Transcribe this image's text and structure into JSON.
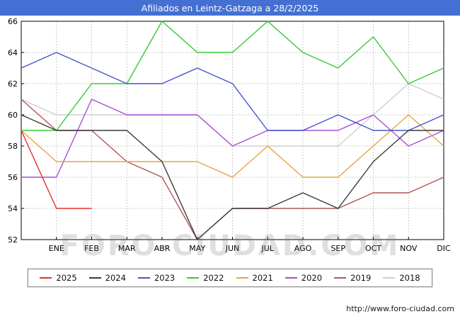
{
  "title": "Afiliados en Leintz-Gatzaga a 28/2/2025",
  "watermark": "FORO-CIUDAD.COM",
  "footer": {
    "url": "http://www.foro-ciudad.com"
  },
  "chart_data": {
    "type": "line",
    "title": "Afiliados en Leintz-Gatzaga a 28/2/2025",
    "x_labels": [
      "ENE",
      "FEB",
      "MAR",
      "ABR",
      "MAY",
      "JUN",
      "JUL",
      "AGO",
      "SEP",
      "OCT",
      "NOV",
      "DIC"
    ],
    "ylim": [
      52,
      66
    ],
    "ytick_step": 2,
    "grid": true,
    "legend_position": "bottom",
    "series": [
      {
        "name": "2025",
        "color": "#e62e2e",
        "values": [
          59,
          54,
          54
        ]
      },
      {
        "name": "2024",
        "color": "#3a3a3a",
        "values": [
          60,
          59,
          59,
          59,
          57,
          52,
          54,
          54,
          55,
          54,
          57,
          59,
          59
        ]
      },
      {
        "name": "2023",
        "color": "#4753c8",
        "values": [
          63,
          64,
          63,
          62,
          62,
          63,
          62,
          59,
          59,
          60,
          59,
          59,
          60
        ]
      },
      {
        "name": "2022",
        "color": "#33cc33",
        "values": [
          59,
          59,
          62,
          62,
          66,
          64,
          64,
          66,
          64,
          63,
          65,
          62,
          63
        ]
      },
      {
        "name": "2021",
        "color": "#e8a33c",
        "values": [
          59,
          57,
          57,
          57,
          57,
          57,
          56,
          58,
          56,
          56,
          58,
          60,
          58
        ]
      },
      {
        "name": "2020",
        "color": "#a64fd6",
        "values": [
          56,
          56,
          61,
          60,
          60,
          60,
          58,
          59,
          59,
          59,
          60,
          58,
          59
        ]
      },
      {
        "name": "2019",
        "color": "#b25555",
        "values": [
          61,
          59,
          59,
          57,
          56,
          52,
          54,
          54,
          54,
          54,
          55,
          55,
          56
        ]
      },
      {
        "name": "2018",
        "color": "#cfcfcf",
        "values": [
          61,
          60,
          60,
          60,
          60,
          60,
          58,
          58,
          58,
          58,
          60,
          62,
          61
        ]
      }
    ]
  }
}
